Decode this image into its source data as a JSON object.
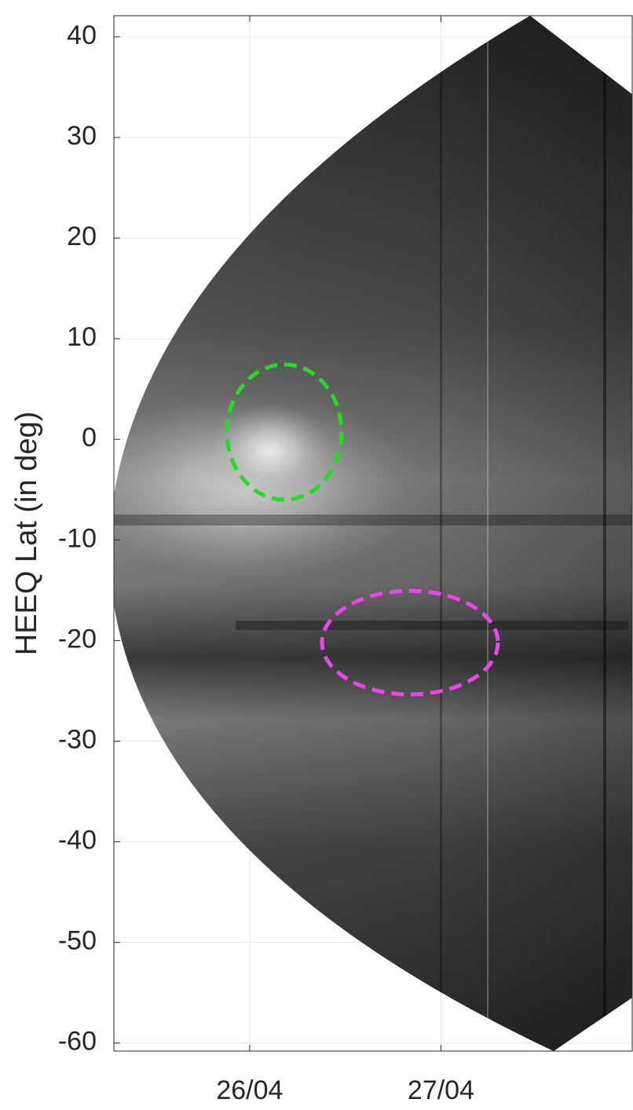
{
  "chart_data": {
    "type": "image",
    "ylabel": "HEEQ Lat (in deg)",
    "xlim": [
      25.29,
      28.0
    ],
    "xticks": [
      {
        "value": 26,
        "label": "26/04"
      },
      {
        "value": 27,
        "label": "27/04"
      }
    ],
    "ylim": [
      -60.8,
      42.1
    ],
    "yticks": [
      -60,
      -50,
      -40,
      -30,
      -20,
      -10,
      0,
      10,
      20,
      30,
      40
    ],
    "grid": true
  }
}
